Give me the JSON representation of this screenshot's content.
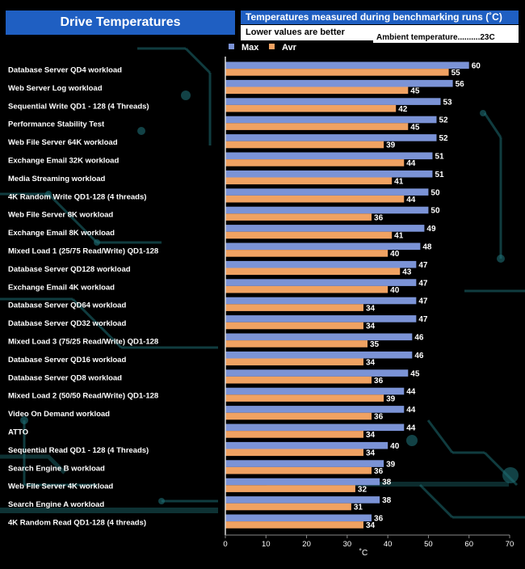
{
  "header": {
    "title": "Drive Temperatures",
    "subtitle_1": "Temperatures measured during benchmarking runs (˚C)",
    "subtitle_2": "Lower values are better",
    "ambient": "Ambient  temperature..........23C"
  },
  "colors": {
    "max": "#7b93d6",
    "avr": "#f0a262",
    "header_blue": "#1f5fc2",
    "circuit": "#1e6e74",
    "background": "#000000"
  },
  "chart_data": {
    "type": "bar",
    "orientation": "horizontal",
    "title": "Drive Temperatures",
    "xlabel": "˚C",
    "xlim": [
      0,
      70
    ],
    "xticks": [
      0,
      10,
      20,
      30,
      40,
      50,
      60,
      70
    ],
    "grid": false,
    "legend_position": "top",
    "categories": [
      "Database Server QD4 workload",
      "Web Server Log workload",
      "Sequential Write QD1 - 128 (4 Threads)",
      "Performance Stability Test",
      "Web File Server 64K workload",
      "Exchange Email 32K workload",
      "Media Streaming workload",
      "4K Random Write QD1-128 (4 threads)",
      "Web File Server 8K workload",
      "Exchange Email 8K workload",
      "Mixed Load 1 (25/75 Read/Write) QD1-128",
      "Database Server QD128 workload",
      "Exchange Email 4K workload",
      "Database Server QD64 workload",
      "Database Server QD32 workload",
      "Mixed Load 3 (75/25 Read/Write) QD1-128",
      "Database Server QD16 workload",
      "Database Server QD8 workload",
      "Mixed Load 2 (50/50 Read/Write) QD1-128",
      "Video On Demand workload",
      "ATTO",
      "Sequential Read QD1 - 128 (4 Threads)",
      "Search Engine B workload",
      "Web File Server 4K workload",
      "Search Engine A workload",
      "4K Random Read QD1-128 (4 threads)"
    ],
    "series": [
      {
        "name": "Max",
        "values": [
          60,
          56,
          53,
          52,
          52,
          51,
          51,
          50,
          50,
          49,
          48,
          47,
          47,
          47,
          47,
          46,
          46,
          45,
          44,
          44,
          44,
          40,
          39,
          38,
          38,
          36
        ]
      },
      {
        "name": "Avr",
        "values": [
          55,
          45,
          42,
          45,
          39,
          44,
          41,
          44,
          36,
          41,
          40,
          43,
          40,
          34,
          34,
          35,
          34,
          36,
          39,
          36,
          34,
          34,
          36,
          32,
          31,
          34
        ]
      }
    ]
  }
}
